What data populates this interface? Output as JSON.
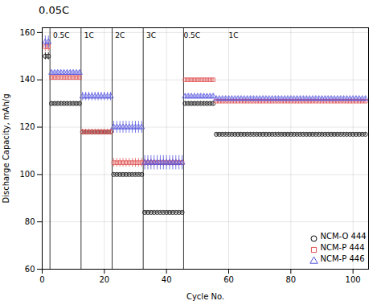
{
  "chart_data": {
    "type": "scatter",
    "title": "0.05C",
    "x_label": "Cycle No.",
    "y_label": "Discharge Capacity, mAh/g",
    "xlim": [
      0,
      105
    ],
    "ylim": [
      60,
      162
    ],
    "xticks": [
      0,
      20,
      40,
      60,
      80,
      100
    ],
    "yticks": [
      60,
      80,
      100,
      120,
      140,
      160
    ],
    "grid": true,
    "legend": "lower right",
    "vlines": [
      2.5,
      12.5,
      22.5,
      32.5,
      45.5
    ],
    "annotations": [
      {
        "text": "0.5C",
        "x": 3.5,
        "y": 160
      },
      {
        "text": "1C",
        "x": 13.5,
        "y": 160
      },
      {
        "text": "2C",
        "x": 23.5,
        "y": 160
      },
      {
        "text": "3C",
        "x": 33.5,
        "y": 160
      },
      {
        "text": "0.5C",
        "x": 45.5,
        "y": 160
      },
      {
        "text": "1C",
        "x": 60,
        "y": 160
      }
    ],
    "x": [
      1,
      2,
      3,
      4,
      5,
      6,
      7,
      8,
      9,
      10,
      11,
      12,
      13,
      14,
      15,
      16,
      17,
      18,
      19,
      20,
      21,
      22,
      23,
      24,
      25,
      26,
      27,
      28,
      29,
      30,
      31,
      32,
      33,
      34,
      35,
      36,
      37,
      38,
      39,
      40,
      41,
      42,
      43,
      44,
      45,
      46,
      47,
      48,
      49,
      50,
      51,
      52,
      53,
      54,
      55,
      56,
      57,
      58,
      59,
      60,
      61,
      62,
      63,
      64,
      65,
      66,
      67,
      68,
      69,
      70,
      71,
      72,
      73,
      74,
      75,
      76,
      77,
      78,
      79,
      80,
      81,
      82,
      83,
      84,
      85,
      86,
      87,
      88,
      89,
      90,
      91,
      92,
      93,
      94,
      95,
      96,
      97,
      98,
      99,
      100,
      101,
      102,
      103,
      104
    ],
    "series": [
      {
        "name": "NCM-O 444",
        "color": "#000000",
        "marker": "circle",
        "values": [
          150,
          150,
          130,
          130,
          130,
          130,
          130,
          130,
          130,
          130,
          130,
          130,
          118,
          118,
          118,
          118,
          118,
          118,
          118,
          118,
          118,
          118,
          100,
          100,
          100,
          100,
          100,
          100,
          100,
          100,
          100,
          100,
          84,
          84,
          84,
          84,
          84,
          84,
          84,
          84,
          84,
          84,
          84,
          84,
          84,
          130,
          130,
          130,
          130,
          130,
          130,
          130,
          130,
          130,
          130,
          117,
          117,
          117,
          117,
          117,
          117,
          117,
          117,
          117,
          117,
          117,
          117,
          117,
          117,
          117,
          117,
          117,
          117,
          117,
          117,
          117,
          117,
          117,
          117,
          117,
          117,
          117,
          117,
          117,
          117,
          117,
          117,
          117,
          117,
          117,
          117,
          117,
          117,
          117,
          117,
          117,
          117,
          117,
          117,
          117,
          117,
          117,
          117,
          117
        ],
        "yerr": [
          1.5,
          1.5,
          0.8,
          0.8,
          0.8,
          0.8,
          0.8,
          0.8,
          0.8,
          0.8,
          0.8,
          0.8,
          0.8,
          0.8,
          0.8,
          0.8,
          0.8,
          0.8,
          0.8,
          0.8,
          0.8,
          0.8,
          0.6,
          0.6,
          0.6,
          0.6,
          0.6,
          0.6,
          0.6,
          0.6,
          0.6,
          0.6,
          0.5,
          0.5,
          0.5,
          0.5,
          0.5,
          0.5,
          0.5,
          0.5,
          0.5,
          0.5,
          0.5,
          0.5,
          0.5,
          0.8,
          0.8,
          0.8,
          0.8,
          0.8,
          0.8,
          0.8,
          0.8,
          0.8,
          0.8,
          0.6,
          0.6,
          0.6,
          0.6,
          0.6,
          0.6,
          0.6,
          0.6,
          0.6,
          0.6,
          0.6,
          0.6,
          0.6,
          0.6,
          0.6,
          0.6,
          0.6,
          0.6,
          0.6,
          0.6,
          0.6,
          0.6,
          0.6,
          0.6,
          0.6,
          0.6,
          0.6,
          0.6,
          0.6,
          0.6,
          0.6,
          0.6,
          0.6,
          0.6,
          0.6,
          0.6,
          0.6,
          0.6,
          0.6,
          0.6,
          0.6,
          0.6,
          0.6,
          0.6,
          0.6,
          0.6,
          0.6,
          0.6,
          0.6
        ]
      },
      {
        "name": "NCM-P 444",
        "color": "#e05050",
        "marker": "square",
        "values": [
          154,
          154,
          141,
          141,
          141,
          141,
          141,
          141,
          141,
          141,
          141,
          141,
          118,
          118,
          118,
          118,
          118,
          118,
          118,
          118,
          118,
          118,
          105,
          105,
          105,
          105,
          105,
          105,
          105,
          105,
          105,
          105,
          105,
          105,
          105,
          105,
          105,
          105,
          105,
          105,
          105,
          105,
          105,
          105,
          105,
          140,
          140,
          140,
          140,
          140,
          140,
          140,
          140,
          140,
          140,
          131,
          131,
          131,
          131,
          131,
          131,
          131,
          131,
          131,
          131,
          131,
          131,
          131,
          131,
          131,
          131,
          131,
          131,
          131,
          131,
          131,
          131,
          131,
          131,
          131,
          131,
          131,
          131,
          131,
          131,
          131,
          131,
          131,
          131,
          131,
          131,
          131,
          131,
          131,
          131,
          131,
          131,
          131,
          131,
          131,
          131,
          131,
          131,
          131
        ],
        "yerr": [
          2.0,
          2.0,
          0.8,
          0.8,
          0.8,
          0.8,
          0.8,
          0.8,
          0.8,
          0.8,
          0.8,
          0.8,
          1.2,
          1.2,
          1.2,
          1.2,
          1.2,
          1.2,
          1.2,
          1.2,
          1.2,
          1.2,
          1.8,
          1.8,
          1.8,
          1.8,
          1.8,
          1.8,
          1.8,
          1.8,
          1.8,
          1.8,
          1.5,
          1.5,
          1.5,
          1.5,
          1.5,
          1.5,
          1.5,
          1.5,
          1.5,
          1.5,
          1.5,
          1.5,
          1.5,
          0.8,
          0.8,
          0.8,
          0.8,
          0.8,
          0.8,
          0.8,
          0.8,
          0.8,
          0.8,
          0.6,
          0.6,
          0.6,
          0.6,
          0.6,
          0.6,
          0.6,
          0.6,
          0.6,
          0.6,
          0.6,
          0.6,
          0.6,
          0.6,
          0.6,
          0.6,
          0.6,
          0.6,
          0.6,
          0.6,
          0.6,
          0.6,
          0.6,
          0.6,
          0.6,
          0.6,
          0.6,
          0.6,
          0.6,
          0.6,
          0.6,
          0.6,
          0.6,
          0.6,
          0.6,
          0.6,
          0.6,
          0.6,
          0.6,
          0.6,
          0.6,
          0.6,
          0.6,
          0.6,
          0.6,
          0.6,
          0.6,
          0.6,
          0.6
        ]
      },
      {
        "name": "NCM-P 446",
        "color": "#5555e0",
        "marker": "triangle",
        "values": [
          156,
          156,
          143,
          143,
          143,
          143,
          143,
          143,
          143,
          143,
          143,
          143,
          133,
          133,
          133,
          133,
          133,
          133,
          133,
          133,
          133,
          133,
          120,
          120,
          120,
          120,
          120,
          120,
          120,
          120,
          120,
          120,
          105,
          105,
          105,
          105,
          105,
          105,
          105,
          105,
          105,
          105,
          105,
          105,
          105,
          133,
          133,
          133,
          133,
          133,
          133,
          133,
          133,
          133,
          133,
          132,
          132,
          132,
          132,
          132,
          132,
          132,
          132,
          132,
          132,
          132,
          132,
          132,
          132,
          132,
          132,
          132,
          132,
          132,
          132,
          132,
          132,
          132,
          132,
          132,
          132,
          132,
          132,
          132,
          132,
          132,
          132,
          132,
          132,
          132,
          132,
          132,
          132,
          132,
          132,
          132,
          132,
          132,
          132,
          132,
          132,
          132,
          132,
          132
        ],
        "yerr": [
          2.5,
          2.5,
          1.0,
          1.0,
          1.0,
          1.0,
          1.0,
          1.0,
          1.0,
          1.0,
          1.0,
          1.0,
          1.8,
          1.8,
          1.8,
          1.8,
          1.8,
          1.8,
          1.8,
          1.8,
          1.8,
          1.8,
          2.5,
          2.5,
          2.5,
          2.5,
          2.5,
          2.5,
          2.5,
          2.5,
          2.5,
          2.5,
          3.0,
          3.0,
          3.0,
          3.0,
          3.0,
          3.0,
          3.0,
          3.0,
          3.0,
          3.0,
          3.0,
          3.0,
          3.0,
          1.0,
          1.0,
          1.0,
          1.0,
          1.0,
          1.0,
          1.0,
          1.0,
          1.0,
          1.0,
          0.8,
          0.8,
          0.8,
          0.8,
          0.8,
          0.8,
          0.8,
          0.8,
          0.8,
          0.8,
          0.8,
          0.8,
          0.8,
          0.8,
          0.8,
          0.8,
          0.8,
          0.8,
          0.8,
          0.8,
          0.8,
          0.8,
          0.8,
          0.8,
          0.8,
          0.8,
          0.8,
          0.8,
          0.8,
          0.8,
          0.8,
          0.8,
          0.8,
          0.8,
          0.8,
          0.8,
          0.8,
          0.8,
          0.8,
          0.8,
          0.8,
          0.8,
          0.8,
          0.8,
          0.8,
          0.8,
          0.8,
          0.8,
          0.8
        ]
      }
    ]
  }
}
